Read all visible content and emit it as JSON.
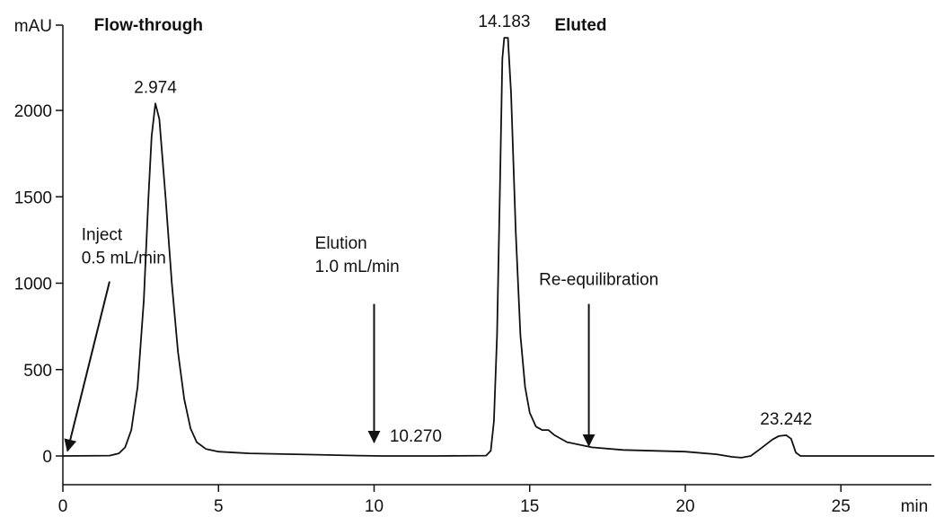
{
  "chart_data": {
    "type": "line",
    "title": "",
    "ylabel": "mAU",
    "xlabel": "min",
    "xlim": [
      0,
      28
    ],
    "ylim": [
      -120,
      2500
    ],
    "xticks": [
      0,
      5,
      10,
      15,
      20,
      25
    ],
    "yticks": [
      0,
      500,
      1000,
      1500,
      2000
    ],
    "grid": false,
    "series": [
      {
        "points": [
          [
            0.0,
            0
          ],
          [
            1.5,
            2
          ],
          [
            1.8,
            15
          ],
          [
            2.0,
            50
          ],
          [
            2.2,
            150
          ],
          [
            2.4,
            400
          ],
          [
            2.6,
            900
          ],
          [
            2.75,
            1500
          ],
          [
            2.85,
            1850
          ],
          [
            2.974,
            2040
          ],
          [
            3.1,
            1950
          ],
          [
            3.3,
            1500
          ],
          [
            3.5,
            1000
          ],
          [
            3.7,
            600
          ],
          [
            3.9,
            330
          ],
          [
            4.1,
            160
          ],
          [
            4.3,
            80
          ],
          [
            4.6,
            40
          ],
          [
            5.0,
            25
          ],
          [
            6.0,
            15
          ],
          [
            8.0,
            8
          ],
          [
            9.5,
            2
          ],
          [
            10.27,
            0
          ],
          [
            12.0,
            0
          ],
          [
            13.6,
            2
          ],
          [
            13.75,
            30
          ],
          [
            13.85,
            200
          ],
          [
            13.95,
            700
          ],
          [
            14.05,
            1600
          ],
          [
            14.12,
            2300
          ],
          [
            14.183,
            2420
          ],
          [
            14.3,
            2420
          ],
          [
            14.4,
            2100
          ],
          [
            14.55,
            1300
          ],
          [
            14.7,
            700
          ],
          [
            14.85,
            400
          ],
          [
            15.0,
            250
          ],
          [
            15.2,
            170
          ],
          [
            15.4,
            150
          ],
          [
            15.6,
            150
          ],
          [
            15.8,
            120
          ],
          [
            16.2,
            80
          ],
          [
            17.0,
            50
          ],
          [
            18.0,
            35
          ],
          [
            20.0,
            25
          ],
          [
            21.0,
            10
          ],
          [
            21.5,
            -5
          ],
          [
            21.8,
            -10
          ],
          [
            22.1,
            0
          ],
          [
            22.4,
            40
          ],
          [
            22.8,
            95
          ],
          [
            23.0,
            115
          ],
          [
            23.242,
            120
          ],
          [
            23.4,
            100
          ],
          [
            23.55,
            20
          ],
          [
            23.7,
            0
          ],
          [
            25.0,
            0
          ],
          [
            28.0,
            0
          ]
        ]
      }
    ],
    "peak_labels": [
      {
        "x": 2.974,
        "y": 2040,
        "text": "2.974"
      },
      {
        "x": 14.183,
        "y": 2420,
        "text": "14.183"
      },
      {
        "x": 23.242,
        "y": 120,
        "text": "23.242"
      },
      {
        "x": 10.27,
        "y": 0,
        "text": "10.270"
      }
    ],
    "section_labels": [
      {
        "text": "Flow-through",
        "x": 1.0
      },
      {
        "text": "Eluted",
        "x": 15.8
      }
    ],
    "annotations": [
      {
        "lines": [
          "Inject",
          "0.5 mL/min"
        ],
        "x": 0.6,
        "y": 1250,
        "arrow_from": [
          1.5,
          1010
        ],
        "arrow_to": [
          0.15,
          30
        ]
      },
      {
        "lines": [
          "Elution",
          "1.0 mL/min"
        ],
        "x": 8.1,
        "y": 1200,
        "arrow_from": [
          10.0,
          880
        ],
        "arrow_to": [
          10.0,
          80
        ]
      },
      {
        "lines": [
          "Re-equilibration"
        ],
        "x": 15.3,
        "y": 990,
        "arrow_from": [
          16.9,
          880
        ],
        "arrow_to": [
          16.9,
          60
        ]
      }
    ]
  }
}
